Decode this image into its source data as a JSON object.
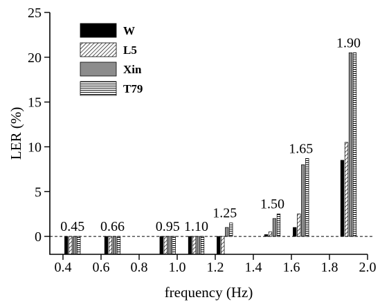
{
  "chart_data": {
    "type": "bar",
    "xlabel": "frequency (Hz)",
    "ylabel": "LER (%)",
    "xlim": [
      0.4,
      2.0
    ],
    "ylim": [
      -2,
      25
    ],
    "xticks": [
      0.4,
      0.6,
      0.8,
      1.0,
      1.2,
      1.4,
      1.6,
      1.8,
      2.0
    ],
    "xtick_labels": [
      "0.4",
      "0.6",
      "0.8",
      "1.0",
      "1.2",
      "1.4",
      "1.6",
      "1.8",
      "2.0"
    ],
    "yticks": [
      0,
      5,
      10,
      15,
      20,
      25
    ],
    "ytick_labels": [
      "0",
      "5",
      "10",
      "15",
      "20",
      "25"
    ],
    "zero_line": "dashed",
    "grid": false,
    "legend_position": "top-left",
    "x": [
      0.45,
      0.66,
      0.95,
      1.1,
      1.25,
      1.5,
      1.65,
      1.9
    ],
    "group_labels": [
      "0.45",
      "0.66",
      "0.95",
      "1.10",
      "1.25",
      "1.50",
      "1.65",
      "1.90"
    ],
    "series": [
      {
        "name": "W",
        "fill": "solid-black",
        "values": [
          -2,
          -2,
          -2,
          -2,
          -2,
          0.2,
          1.0,
          8.5
        ]
      },
      {
        "name": "L5",
        "fill": "diagonal-hatch",
        "values": [
          -2,
          -2,
          -2,
          -2,
          -2,
          0.5,
          2.5,
          10.5
        ]
      },
      {
        "name": "Xin",
        "fill": "solid-gray",
        "values": [
          -2,
          -2,
          -2,
          -2,
          1.0,
          2.0,
          8.0,
          20.5
        ]
      },
      {
        "name": "T79",
        "fill": "horizontal-line-hatch",
        "values": [
          -2,
          -2,
          -2,
          -2,
          1.5,
          2.5,
          8.7,
          20.5
        ]
      }
    ],
    "colors": {
      "W": "#000000",
      "Xin": "#8c8c8c",
      "hatch": "#000000",
      "background": "#ffffff"
    }
  }
}
